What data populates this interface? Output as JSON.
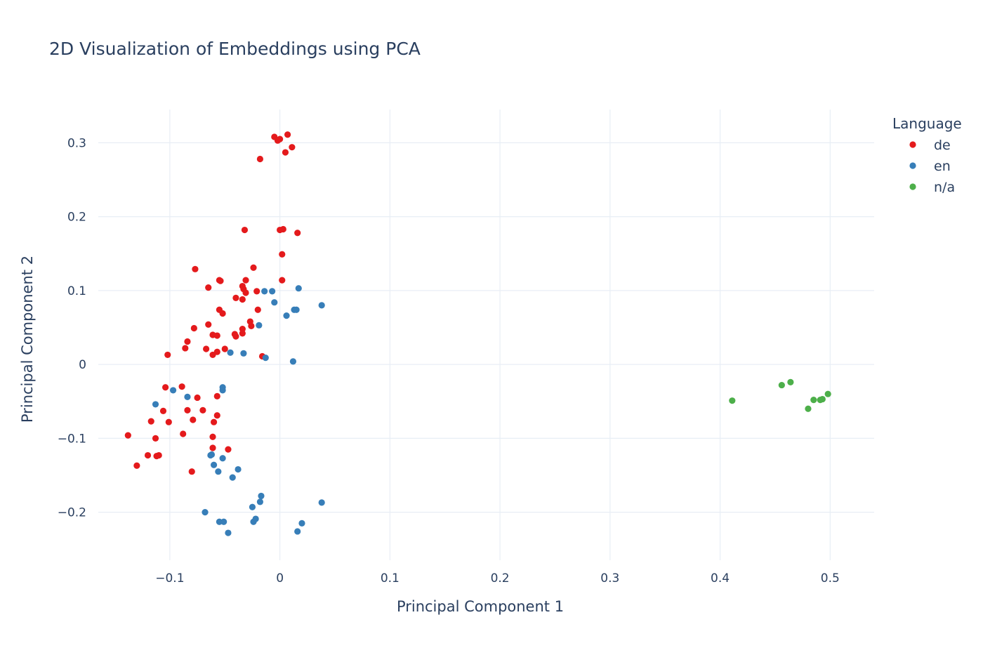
{
  "chart_data": {
    "type": "scatter",
    "title": "2D Visualization of Embeddings using PCA",
    "xlabel": "Principal Component 1",
    "ylabel": "Principal Component 2",
    "xlim": [
      -0.165,
      0.54
    ],
    "ylim": [
      -0.265,
      0.345
    ],
    "xticks": [
      -0.1,
      0,
      0.1,
      0.2,
      0.3,
      0.4,
      0.5
    ],
    "xtick_labels": [
      "−0.1",
      "0",
      "0.1",
      "0.2",
      "0.3",
      "0.4",
      "0.5"
    ],
    "yticks": [
      -0.2,
      -0.1,
      0,
      0.1,
      0.2,
      0.3
    ],
    "ytick_labels": [
      "−0.2",
      "−0.1",
      "0",
      "0.1",
      "0.2",
      "0.3"
    ],
    "grid": true,
    "legend": {
      "title": "Language",
      "placement": "top-right"
    },
    "series": [
      {
        "name": "de",
        "color": "#e41a1c",
        "points": [
          [
            -0.005,
            0.308
          ],
          [
            0.007,
            0.311
          ],
          [
            -0.002,
            0.303
          ],
          [
            0.0,
            0.305
          ],
          [
            0.011,
            0.294
          ],
          [
            0.005,
            0.287
          ],
          [
            -0.018,
            0.278
          ],
          [
            -0.032,
            0.182
          ],
          [
            0.0,
            0.182
          ],
          [
            0.003,
            0.183
          ],
          [
            0.016,
            0.178
          ],
          [
            0.002,
            0.149
          ],
          [
            -0.077,
            0.129
          ],
          [
            -0.024,
            0.131
          ],
          [
            -0.055,
            0.114
          ],
          [
            -0.054,
            0.113
          ],
          [
            -0.031,
            0.114
          ],
          [
            0.002,
            0.114
          ],
          [
            -0.065,
            0.104
          ],
          [
            -0.034,
            0.106
          ],
          [
            -0.033,
            0.102
          ],
          [
            -0.031,
            0.097
          ],
          [
            -0.021,
            0.099
          ],
          [
            -0.04,
            0.09
          ],
          [
            -0.034,
            0.088
          ],
          [
            -0.055,
            0.074
          ],
          [
            -0.052,
            0.069
          ],
          [
            -0.02,
            0.074
          ],
          [
            -0.078,
            0.049
          ],
          [
            -0.065,
            0.054
          ],
          [
            -0.027,
            0.058
          ],
          [
            -0.026,
            0.052
          ],
          [
            -0.034,
            0.048
          ],
          [
            -0.034,
            0.042
          ],
          [
            -0.041,
            0.041
          ],
          [
            -0.04,
            0.038
          ],
          [
            -0.057,
            0.039
          ],
          [
            -0.061,
            0.04
          ],
          [
            -0.084,
            0.031
          ],
          [
            -0.086,
            0.022
          ],
          [
            -0.067,
            0.021
          ],
          [
            -0.05,
            0.021
          ],
          [
            -0.057,
            0.017
          ],
          [
            -0.061,
            0.013
          ],
          [
            -0.102,
            0.013
          ],
          [
            -0.016,
            0.011
          ],
          [
            -0.104,
            -0.031
          ],
          [
            -0.089,
            -0.03
          ],
          [
            -0.075,
            -0.045
          ],
          [
            -0.057,
            -0.043
          ],
          [
            -0.106,
            -0.063
          ],
          [
            -0.084,
            -0.062
          ],
          [
            -0.07,
            -0.062
          ],
          [
            -0.057,
            -0.069
          ],
          [
            -0.117,
            -0.077
          ],
          [
            -0.101,
            -0.078
          ],
          [
            -0.079,
            -0.075
          ],
          [
            -0.06,
            -0.078
          ],
          [
            -0.138,
            -0.096
          ],
          [
            -0.088,
            -0.094
          ],
          [
            -0.113,
            -0.1
          ],
          [
            -0.061,
            -0.098
          ],
          [
            -0.061,
            -0.113
          ],
          [
            -0.047,
            -0.115
          ],
          [
            -0.12,
            -0.123
          ],
          [
            -0.112,
            -0.124
          ],
          [
            -0.11,
            -0.123
          ],
          [
            -0.13,
            -0.137
          ],
          [
            -0.08,
            -0.145
          ]
        ]
      },
      {
        "name": "en",
        "color": "#377eb8",
        "points": [
          [
            0.017,
            0.103
          ],
          [
            -0.014,
            0.099
          ],
          [
            -0.007,
            0.099
          ],
          [
            -0.005,
            0.084
          ],
          [
            0.038,
            0.08
          ],
          [
            0.013,
            0.074
          ],
          [
            0.015,
            0.074
          ],
          [
            0.006,
            0.066
          ],
          [
            -0.019,
            0.053
          ],
          [
            -0.045,
            0.016
          ],
          [
            -0.033,
            0.015
          ],
          [
            -0.013,
            0.009
          ],
          [
            0.012,
            0.004
          ],
          [
            -0.052,
            -0.031
          ],
          [
            -0.052,
            -0.035
          ],
          [
            -0.097,
            -0.035
          ],
          [
            -0.113,
            -0.054
          ],
          [
            -0.084,
            -0.044
          ],
          [
            -0.062,
            -0.122
          ],
          [
            -0.063,
            -0.123
          ],
          [
            -0.052,
            -0.127
          ],
          [
            -0.06,
            -0.136
          ],
          [
            -0.038,
            -0.142
          ],
          [
            -0.056,
            -0.145
          ],
          [
            -0.043,
            -0.153
          ],
          [
            -0.017,
            -0.178
          ],
          [
            -0.018,
            -0.186
          ],
          [
            0.038,
            -0.187
          ],
          [
            -0.025,
            -0.193
          ],
          [
            -0.068,
            -0.2
          ],
          [
            -0.022,
            -0.209
          ],
          [
            -0.024,
            -0.213
          ],
          [
            -0.055,
            -0.213
          ],
          [
            -0.051,
            -0.213
          ],
          [
            0.02,
            -0.215
          ],
          [
            0.016,
            -0.226
          ],
          [
            -0.047,
            -0.228
          ]
        ]
      },
      {
        "name": "n/a",
        "color": "#4daf4a",
        "points": [
          [
            0.411,
            -0.049
          ],
          [
            0.456,
            -0.028
          ],
          [
            0.464,
            -0.024
          ],
          [
            0.485,
            -0.048
          ],
          [
            0.491,
            -0.048
          ],
          [
            0.493,
            -0.047
          ],
          [
            0.498,
            -0.04
          ],
          [
            0.48,
            -0.06
          ]
        ]
      }
    ]
  }
}
